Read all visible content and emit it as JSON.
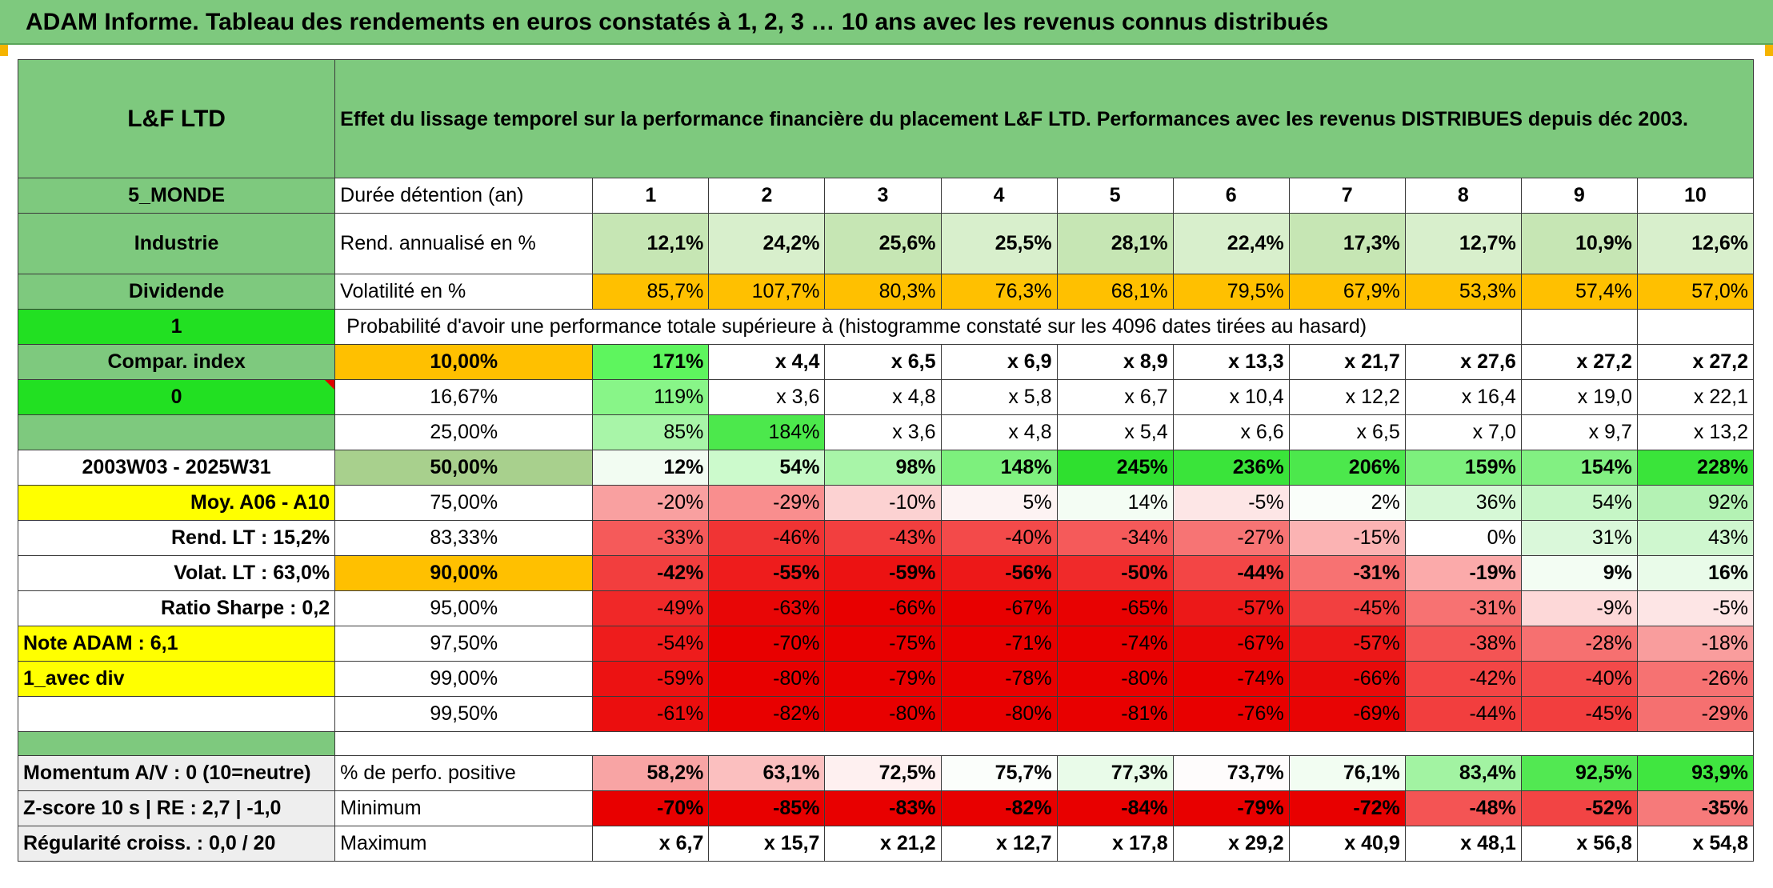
{
  "title": "ADAM Informe. Tableau des rendements en euros constatés à 1, 2, 3 … 10 ans avec les revenus connus distribués",
  "fund": {
    "name": "L&F LTD",
    "zone": "5_MONDE",
    "sector": "Industrie",
    "dividend_label": "Dividende",
    "flag1": "1",
    "compar_label": "Compar. index",
    "flag0": "0",
    "period": "2003W03 - 2025W31",
    "moy_label": "Moy. A06 - A10",
    "rend_lt": "Rend. LT :    15,2%",
    "volat_lt": "Volat. LT :    63,0%",
    "sharpe": "Ratio Sharpe :    0,2",
    "note": "Note ADAM : 6,1",
    "mode": "1_avec div"
  },
  "header": {
    "description": "Effet du lissage temporel sur la performance financière du placement L&F LTD. Performances avec les revenus DISTRIBUES depuis déc 2003."
  },
  "labels": {
    "duration": "Durée détention (an)",
    "annualized": "Rend. annualisé en %",
    "volatility": "Volatilité en %",
    "probability": "Probabilité d'avoir une performance totale supérieure à (histogramme constaté sur les 4096 dates tirées au hasard)",
    "positive": "% de perfo. positive",
    "minimum": "Minimum",
    "maximum": "Maximum"
  },
  "years": [
    "1",
    "2",
    "3",
    "4",
    "5",
    "6",
    "7",
    "8",
    "9",
    "10"
  ],
  "annualized": [
    "12,1%",
    "24,2%",
    "25,6%",
    "25,5%",
    "28,1%",
    "22,4%",
    "17,3%",
    "12,7%",
    "10,9%",
    "12,6%"
  ],
  "volatility": [
    "85,7%",
    "107,7%",
    "80,3%",
    "76,3%",
    "68,1%",
    "79,5%",
    "67,9%",
    "53,3%",
    "57,4%",
    "57,0%"
  ],
  "percentiles": [
    {
      "p": "10,00%",
      "values": [
        "171%",
        "x 4,4",
        "x 6,5",
        "x 6,9",
        "x 8,9",
        "x 13,3",
        "x 21,7",
        "x 27,6",
        "x 27,2",
        "x 27,2"
      ]
    },
    {
      "p": "16,67%",
      "values": [
        "119%",
        "x 3,6",
        "x 4,8",
        "x 5,8",
        "x 6,7",
        "x 10,4",
        "x 12,2",
        "x 16,4",
        "x 19,0",
        "x 22,1"
      ]
    },
    {
      "p": "25,00%",
      "values": [
        "85%",
        "184%",
        "x 3,6",
        "x 4,8",
        "x 5,4",
        "x 6,6",
        "x 6,5",
        "x 7,0",
        "x 9,7",
        "x 13,2"
      ]
    },
    {
      "p": "50,00%",
      "values": [
        "12%",
        "54%",
        "98%",
        "148%",
        "245%",
        "236%",
        "206%",
        "159%",
        "154%",
        "228%"
      ]
    },
    {
      "p": "75,00%",
      "values": [
        "-20%",
        "-29%",
        "-10%",
        "5%",
        "14%",
        "-5%",
        "2%",
        "36%",
        "54%",
        "92%"
      ]
    },
    {
      "p": "83,33%",
      "values": [
        "-33%",
        "-46%",
        "-43%",
        "-40%",
        "-34%",
        "-27%",
        "-15%",
        "0%",
        "31%",
        "43%"
      ]
    },
    {
      "p": "90,00%",
      "values": [
        "-42%",
        "-55%",
        "-59%",
        "-56%",
        "-50%",
        "-44%",
        "-31%",
        "-19%",
        "9%",
        "16%"
      ]
    },
    {
      "p": "95,00%",
      "values": [
        "-49%",
        "-63%",
        "-66%",
        "-67%",
        "-65%",
        "-57%",
        "-45%",
        "-31%",
        "-9%",
        "-5%"
      ]
    },
    {
      "p": "97,50%",
      "values": [
        "-54%",
        "-70%",
        "-75%",
        "-71%",
        "-74%",
        "-67%",
        "-57%",
        "-38%",
        "-28%",
        "-18%"
      ]
    },
    {
      "p": "99,00%",
      "values": [
        "-59%",
        "-80%",
        "-79%",
        "-78%",
        "-80%",
        "-74%",
        "-66%",
        "-42%",
        "-40%",
        "-26%"
      ]
    },
    {
      "p": "99,50%",
      "values": [
        "-61%",
        "-82%",
        "-80%",
        "-80%",
        "-81%",
        "-76%",
        "-69%",
        "-44%",
        "-45%",
        "-29%"
      ]
    }
  ],
  "bottom": {
    "momentum": "Momentum A/V : 0 (10=neutre)",
    "zscore": "Z-score 10 s | RE : 2,7 | -1,0",
    "regularity": "Régularité croiss. : 0,0 / 20",
    "positive": [
      "58,2%",
      "63,1%",
      "72,5%",
      "75,7%",
      "77,3%",
      "73,7%",
      "76,1%",
      "83,4%",
      "92,5%",
      "93,9%"
    ],
    "minimum": [
      "-70%",
      "-85%",
      "-83%",
      "-82%",
      "-84%",
      "-79%",
      "-72%",
      "-48%",
      "-52%",
      "-35%"
    ],
    "maximum": [
      "x 6,7",
      "x 15,7",
      "x 21,2",
      "x 12,7",
      "x 17,8",
      "x 29,2",
      "x 40,9",
      "x 48,1",
      "x 56,8",
      "x 54,8"
    ]
  },
  "colors": {
    "header_green": "#7ec97e",
    "flag_green": "#22e022",
    "volatility_orange": "#ffc000",
    "label_yellow": "#ffff00",
    "negative_red": "#e00000",
    "percentile_fills": [
      [
        "#5ef55e",
        "#ffffff",
        "#ffffff",
        "#ffffff",
        "#ffffff",
        "#ffffff",
        "#ffffff",
        "#ffffff",
        "#ffffff",
        "#ffffff"
      ],
      [
        "#88f588",
        "#ffffff",
        "#ffffff",
        "#ffffff",
        "#ffffff",
        "#ffffff",
        "#ffffff",
        "#ffffff",
        "#ffffff",
        "#ffffff"
      ],
      [
        "#a8f5a8",
        "#4ce84c",
        "#ffffff",
        "#ffffff",
        "#ffffff",
        "#ffffff",
        "#ffffff",
        "#ffffff",
        "#ffffff",
        "#ffffff"
      ],
      [
        "#f2fcf2",
        "#ccfacc",
        "#a8f5a8",
        "#7df07d",
        "#2fe02f",
        "#3ae43a",
        "#4ce84c",
        "#7df07d",
        "#82f082",
        "#3ae43a"
      ],
      [
        "#f9a0a0",
        "#f98e8e",
        "#fcd2d2",
        "#fdf3f3",
        "#f4fdf4",
        "#fde6e6",
        "#fafefa",
        "#d6f8d6",
        "#c6f6c6",
        "#b4f2b4"
      ],
      [
        "#f55a5a",
        "#f03434",
        "#f23f3f",
        "#f34a4a",
        "#f55a5a",
        "#f77474",
        "#fbb3b3",
        "#ffffff",
        "#daf8da",
        "#cff7cf"
      ],
      [
        "#f23e3e",
        "#ee1c1c",
        "#ec1212",
        "#ed1818",
        "#f02a2a",
        "#f34545",
        "#f77272",
        "#fbaaaa",
        "#f3fdf3",
        "#e9fbe9"
      ],
      [
        "#f02828",
        "#e80606",
        "#e80000",
        "#e80000",
        "#e80202",
        "#ec1818",
        "#f24040",
        "#f77272",
        "#fdd8d8",
        "#fde5e5"
      ],
      [
        "#ee1c1c",
        "#e80000",
        "#e80000",
        "#e80000",
        "#e80000",
        "#e80606",
        "#ec1818",
        "#f45454",
        "#f67070",
        "#f99d9d"
      ],
      [
        "#ec1212",
        "#e80000",
        "#e80000",
        "#e80000",
        "#e80000",
        "#e80000",
        "#e80a0a",
        "#f34545",
        "#f34a4a",
        "#f67272"
      ],
      [
        "#eb0e0e",
        "#e80000",
        "#e80000",
        "#e80000",
        "#e80000",
        "#e80000",
        "#e80404",
        "#f23e3e",
        "#f23e3e",
        "#f57070"
      ]
    ],
    "positive_fills": [
      "#f8a4a4",
      "#fbbfbf",
      "#fef0f0",
      "#fbfefb",
      "#e9fbe9",
      "#fefcfc",
      "#f2fdf2",
      "#a2f3a2",
      "#52e852",
      "#40e640"
    ],
    "minimum_fills": [
      "#e80000",
      "#e80000",
      "#e80000",
      "#e80000",
      "#e80000",
      "#e80000",
      "#e80000",
      "#f45454",
      "#f24444",
      "#f67a7a"
    ]
  }
}
